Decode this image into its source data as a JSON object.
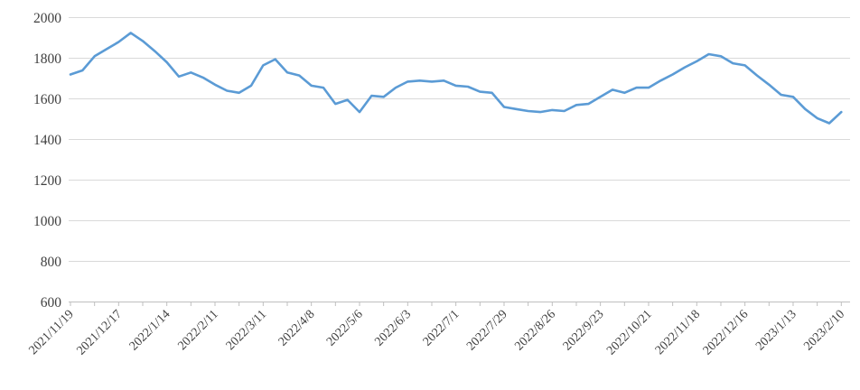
{
  "chart": {
    "background": "#ffffff",
    "line_color": "#5B9BD5",
    "gridline_color": "#D9D9D9",
    "axis_line_color": "#BFBFBF",
    "tick_color": "#BFBFBF",
    "label_color": "#3f3f3f"
  },
  "chart_data": {
    "type": "line",
    "title": "",
    "xlabel": "",
    "ylabel": "",
    "legend": "none",
    "grid": true,
    "ylim": [
      600,
      2000
    ],
    "y_ticks": [
      600,
      800,
      1000,
      1200,
      1400,
      1600,
      1800,
      2000
    ],
    "x": [
      "2021/11/19",
      "2021/11/26",
      "2021/12/3",
      "2021/12/10",
      "2021/12/17",
      "2021/12/24",
      "2021/12/31",
      "2022/1/7",
      "2022/1/14",
      "2022/1/21",
      "2022/1/28",
      "2022/2/4",
      "2022/2/11",
      "2022/2/18",
      "2022/2/25",
      "2022/3/4",
      "2022/3/11",
      "2022/3/18",
      "2022/3/25",
      "2022/4/1",
      "2022/4/8",
      "2022/4/15",
      "2022/4/22",
      "2022/4/29",
      "2022/5/6",
      "2022/5/13",
      "2022/5/20",
      "2022/5/27",
      "2022/6/3",
      "2022/6/10",
      "2022/6/17",
      "2022/6/24",
      "2022/7/1",
      "2022/7/8",
      "2022/7/15",
      "2022/7/22",
      "2022/7/29",
      "2022/8/5",
      "2022/8/12",
      "2022/8/19",
      "2022/8/26",
      "2022/9/2",
      "2022/9/9",
      "2022/9/16",
      "2022/9/23",
      "2022/9/30",
      "2022/10/7",
      "2022/10/14",
      "2022/10/21",
      "2022/10/28",
      "2022/11/4",
      "2022/11/11",
      "2022/11/18",
      "2022/11/25",
      "2022/12/2",
      "2022/12/9",
      "2022/12/16",
      "2022/12/23",
      "2022/12/30",
      "2023/1/6",
      "2023/1/13",
      "2023/1/20",
      "2023/1/27",
      "2023/2/3",
      "2023/2/10"
    ],
    "values": [
      1720,
      1740,
      1810,
      1845,
      1880,
      1925,
      1885,
      1835,
      1780,
      1710,
      1730,
      1705,
      1670,
      1640,
      1630,
      1665,
      1765,
      1795,
      1730,
      1715,
      1665,
      1655,
      1575,
      1595,
      1535,
      1615,
      1610,
      1655,
      1685,
      1690,
      1685,
      1690,
      1665,
      1660,
      1635,
      1630,
      1560,
      1550,
      1540,
      1535,
      1545,
      1540,
      1570,
      1575,
      1610,
      1645,
      1630,
      1655,
      1655,
      1690,
      1720,
      1755,
      1785,
      1820,
      1810,
      1775,
      1765,
      1715,
      1670,
      1620,
      1610,
      1550,
      1505,
      1480,
      1535
    ],
    "x_tick_labels": [
      "2021/11/19",
      "2021/12/17",
      "2022/1/14",
      "2022/2/11",
      "2022/3/11",
      "2022/4/8",
      "2022/5/6",
      "2022/6/3",
      "2022/7/1",
      "2022/7/29",
      "2022/8/26",
      "2022/9/23",
      "2022/10/21",
      "2022/11/18",
      "2022/12/16",
      "2023/1/13",
      "2023/2/10"
    ],
    "x_label_every_n_points": 4,
    "x_minor_tick_every_n_points": 2
  }
}
